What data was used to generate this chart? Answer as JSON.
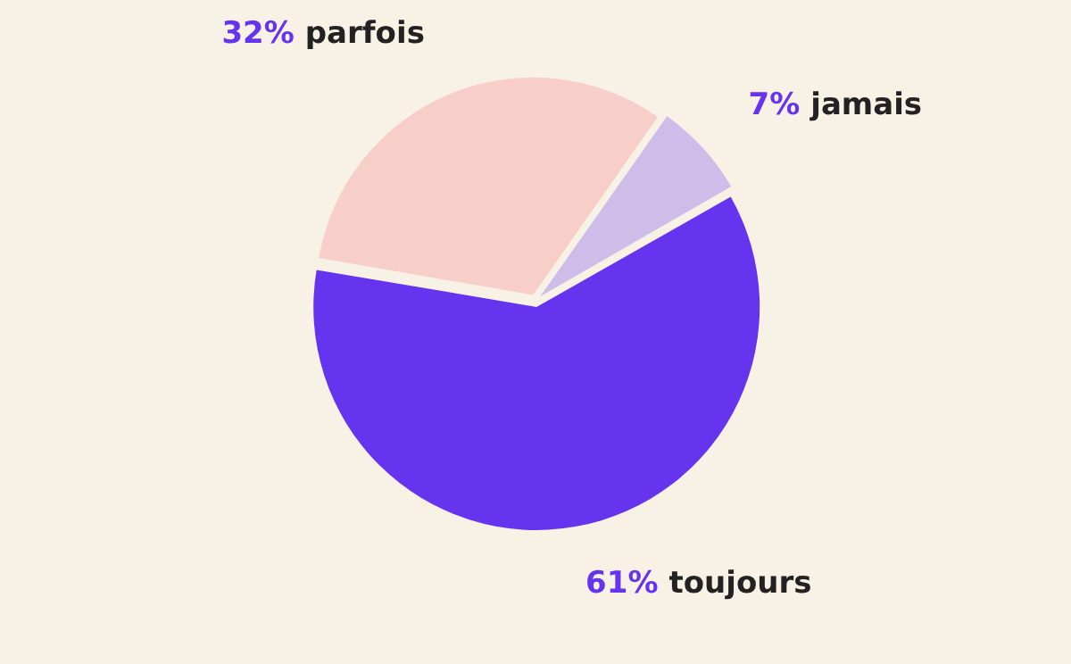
{
  "chart_data": {
    "type": "pie",
    "categories": [
      "jamais",
      "toujours",
      "parfois"
    ],
    "values": [
      7,
      61,
      32
    ],
    "value_labels": [
      "7%",
      "61%",
      "32%"
    ],
    "colors": [
      "#cdbde8",
      "#6633ee",
      "#f7cfc8"
    ],
    "legend": false
  }
}
